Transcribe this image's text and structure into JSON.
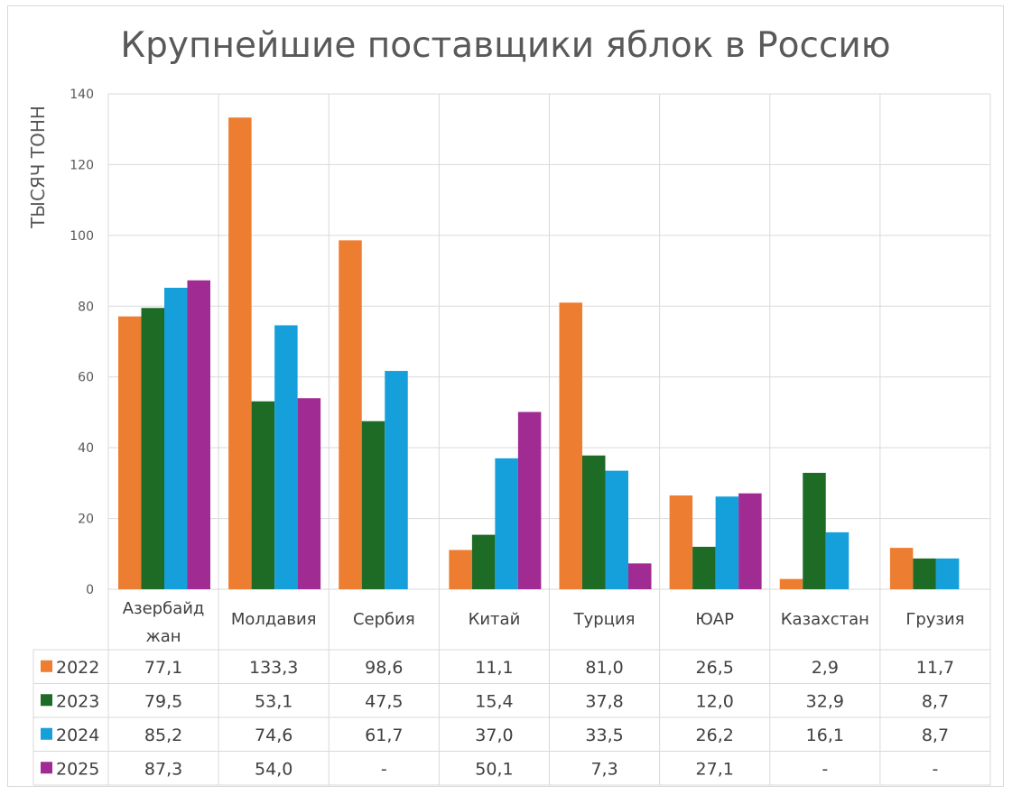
{
  "chart_data": {
    "type": "bar",
    "title": "Крупнейшие поставщики яблок в Россию",
    "xlabel": "",
    "ylabel": "ТЫСЯЧ ТОНН",
    "ylim": [
      0,
      140
    ],
    "yticks": [
      "0",
      "20",
      "40",
      "60",
      "80",
      "100",
      "120",
      "140"
    ],
    "grid": true,
    "legend": "data-table-bottom",
    "categories": [
      [
        "Азербайд",
        "жан"
      ],
      [
        "Молдавия"
      ],
      [
        "Сербия"
      ],
      [
        "Китай"
      ],
      [
        "Турция"
      ],
      [
        "ЮАР"
      ],
      [
        "Казахстан"
      ],
      [
        "Грузия"
      ]
    ],
    "series": [
      {
        "name": "2022",
        "color": "#ED7D31",
        "values": [
          77.1,
          133.3,
          98.6,
          11.1,
          81.0,
          26.5,
          2.9,
          11.7
        ],
        "labels": [
          "77,1",
          "133,3",
          "98,6",
          "11,1",
          "81,0",
          "26,5",
          "2,9",
          "11,7"
        ]
      },
      {
        "name": "2023",
        "color": "#1E6B26",
        "values": [
          79.5,
          53.1,
          47.5,
          15.4,
          37.8,
          12.0,
          32.9,
          8.7
        ],
        "labels": [
          "79,5",
          "53,1",
          "47,5",
          "15,4",
          "37,8",
          "12,0",
          "32,9",
          "8,7"
        ]
      },
      {
        "name": "2024",
        "color": "#16A0DB",
        "values": [
          85.2,
          74.6,
          61.7,
          37.0,
          33.5,
          26.2,
          16.1,
          8.7
        ],
        "labels": [
          "85,2",
          "74,6",
          "61,7",
          "37,0",
          "33,5",
          "26,2",
          "16,1",
          "8,7"
        ]
      },
      {
        "name": "2025",
        "color": "#A02B93",
        "values": [
          87.3,
          54.0,
          null,
          50.1,
          7.3,
          27.1,
          null,
          null
        ],
        "labels": [
          "87,3",
          "54,0",
          "-",
          "50,1",
          "7,3",
          "27,1",
          "-",
          "-"
        ]
      }
    ]
  }
}
